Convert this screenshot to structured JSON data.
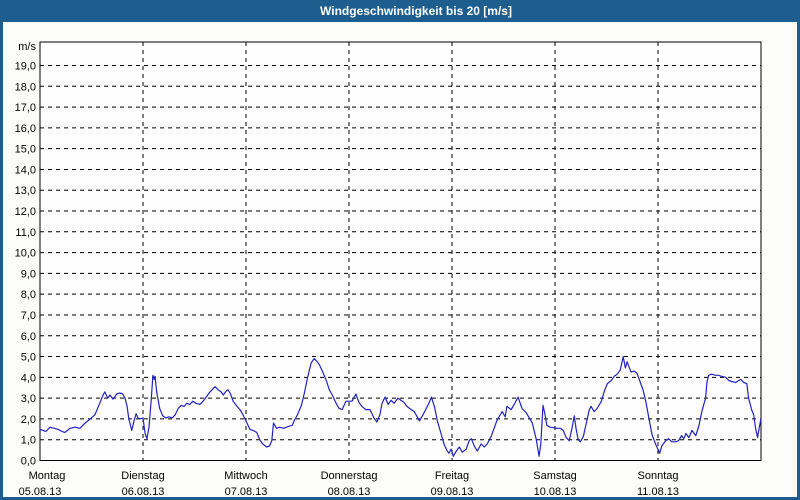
{
  "title": "Windgeschwindigkeit bis 20 [m/s]",
  "colors": {
    "frame_blue": "#1e5e8e",
    "title_text": "#ffffff",
    "chart_background": "#fdfefb",
    "plot_background": "#fefefe",
    "grid": "#000000",
    "axis_text": "#000000",
    "series_line": "#2222be"
  },
  "chart_data": {
    "type": "line",
    "title": "Windgeschwindigkeit bis 20 [m/s]",
    "ylabel": "m/s",
    "unit_label": "m/s",
    "ylim": [
      0,
      20.1
    ],
    "ytick_step": 1.0,
    "grid": "dashed",
    "legend": "none",
    "yticks": [
      "0,0",
      "1,0",
      "2,0",
      "3,0",
      "4,0",
      "5,0",
      "6,0",
      "7,0",
      "8,0",
      "9,0",
      "10,0",
      "11,0",
      "12,0",
      "13,0",
      "14,0",
      "15,0",
      "16,0",
      "17,0",
      "18,0",
      "19,0"
    ],
    "x_days": [
      {
        "name": "Montag",
        "date": "05.08.13"
      },
      {
        "name": "Dienstag",
        "date": "06.08.13"
      },
      {
        "name": "Mittwoch",
        "date": "07.08.13"
      },
      {
        "name": "Donnerstag",
        "date": "08.08.13"
      },
      {
        "name": "Freitag",
        "date": "09.08.13"
      },
      {
        "name": "Samstag",
        "date": "10.08.13"
      },
      {
        "name": "Sonntag",
        "date": "11.08.13"
      }
    ],
    "x_unit": "hours_since_start",
    "x_range": [
      0,
      168
    ],
    "series": [
      {
        "name": "Windgeschwindigkeit",
        "unit": "m/s",
        "color": "#2222be",
        "points": [
          [
            0.0,
            1.5
          ],
          [
            0.7,
            1.45
          ],
          [
            1.4,
            1.4
          ],
          [
            2.3,
            1.6
          ],
          [
            3.3,
            1.55
          ],
          [
            4.2,
            1.5
          ],
          [
            5.1,
            1.4
          ],
          [
            5.8,
            1.35
          ],
          [
            7.0,
            1.55
          ],
          [
            8.2,
            1.6
          ],
          [
            9.3,
            1.55
          ],
          [
            10.5,
            1.8
          ],
          [
            11.7,
            2.0
          ],
          [
            12.8,
            2.2
          ],
          [
            14.0,
            2.8
          ],
          [
            14.7,
            3.15
          ],
          [
            15.1,
            3.3
          ],
          [
            15.8,
            3.0
          ],
          [
            16.3,
            3.15
          ],
          [
            17.0,
            2.95
          ],
          [
            17.9,
            3.2
          ],
          [
            18.6,
            3.25
          ],
          [
            19.3,
            3.2
          ],
          [
            19.8,
            3.0
          ],
          [
            20.3,
            2.6
          ],
          [
            20.7,
            2.0
          ],
          [
            21.4,
            1.45
          ],
          [
            21.9,
            1.9
          ],
          [
            22.4,
            2.25
          ],
          [
            22.8,
            2.05
          ],
          [
            23.3,
            2.0
          ],
          [
            24.0,
            2.05
          ],
          [
            24.5,
            1.3
          ],
          [
            24.9,
            1.05
          ],
          [
            25.4,
            1.6
          ],
          [
            25.9,
            2.9
          ],
          [
            26.3,
            4.1
          ],
          [
            26.6,
            3.9
          ],
          [
            26.8,
            4.05
          ],
          [
            27.2,
            3.3
          ],
          [
            27.9,
            2.5
          ],
          [
            28.6,
            2.15
          ],
          [
            29.3,
            2.05
          ],
          [
            30.0,
            2.1
          ],
          [
            30.8,
            2.05
          ],
          [
            31.5,
            2.2
          ],
          [
            32.2,
            2.5
          ],
          [
            32.9,
            2.65
          ],
          [
            33.6,
            2.6
          ],
          [
            34.2,
            2.75
          ],
          [
            34.9,
            2.7
          ],
          [
            35.6,
            2.85
          ],
          [
            36.3,
            2.75
          ],
          [
            37.3,
            2.7
          ],
          [
            38.2,
            2.9
          ],
          [
            38.9,
            3.1
          ],
          [
            39.6,
            3.3
          ],
          [
            40.3,
            3.45
          ],
          [
            40.8,
            3.55
          ],
          [
            41.5,
            3.4
          ],
          [
            42.2,
            3.3
          ],
          [
            42.7,
            3.15
          ],
          [
            43.4,
            3.35
          ],
          [
            43.8,
            3.4
          ],
          [
            44.3,
            3.25
          ],
          [
            45.0,
            2.85
          ],
          [
            45.9,
            2.6
          ],
          [
            46.6,
            2.45
          ],
          [
            47.3,
            2.2
          ],
          [
            48.0,
            1.9
          ],
          [
            48.9,
            1.5
          ],
          [
            49.6,
            1.45
          ],
          [
            50.5,
            1.35
          ],
          [
            51.2,
            1.0
          ],
          [
            51.9,
            0.8
          ],
          [
            52.8,
            0.65
          ],
          [
            53.5,
            0.7
          ],
          [
            54.0,
            0.95
          ],
          [
            54.4,
            1.8
          ],
          [
            55.1,
            1.55
          ],
          [
            55.8,
            1.6
          ],
          [
            56.7,
            1.55
          ],
          [
            57.4,
            1.6
          ],
          [
            58.1,
            1.65
          ],
          [
            58.8,
            1.7
          ],
          [
            59.3,
            1.95
          ],
          [
            60.0,
            2.2
          ],
          [
            60.9,
            2.65
          ],
          [
            61.6,
            3.25
          ],
          [
            62.3,
            3.95
          ],
          [
            63.2,
            4.7
          ],
          [
            63.9,
            4.9
          ],
          [
            64.6,
            4.75
          ],
          [
            65.1,
            4.6
          ],
          [
            65.8,
            4.3
          ],
          [
            66.7,
            3.85
          ],
          [
            67.4,
            3.4
          ],
          [
            68.1,
            3.15
          ],
          [
            69.0,
            2.75
          ],
          [
            69.7,
            2.5
          ],
          [
            70.4,
            2.45
          ],
          [
            71.3,
            2.85
          ],
          [
            72.0,
            2.85
          ],
          [
            72.7,
            2.85
          ],
          [
            73.6,
            3.2
          ],
          [
            74.3,
            2.8
          ],
          [
            75.0,
            2.6
          ],
          [
            75.9,
            2.45
          ],
          [
            76.9,
            2.45
          ],
          [
            77.8,
            2.05
          ],
          [
            78.5,
            1.85
          ],
          [
            79.2,
            2.2
          ],
          [
            79.7,
            2.75
          ],
          [
            80.4,
            3.05
          ],
          [
            81.1,
            2.7
          ],
          [
            81.8,
            2.9
          ],
          [
            82.5,
            2.75
          ],
          [
            83.4,
            3.0
          ],
          [
            84.1,
            2.9
          ],
          [
            84.8,
            2.8
          ],
          [
            85.5,
            2.6
          ],
          [
            86.5,
            2.45
          ],
          [
            87.2,
            2.35
          ],
          [
            87.9,
            2.1
          ],
          [
            88.4,
            1.9
          ],
          [
            89.1,
            2.15
          ],
          [
            90.0,
            2.5
          ],
          [
            90.7,
            2.8
          ],
          [
            91.2,
            3.05
          ],
          [
            91.9,
            2.6
          ],
          [
            92.6,
            1.9
          ],
          [
            93.5,
            1.25
          ],
          [
            94.2,
            0.75
          ],
          [
            94.9,
            0.45
          ],
          [
            95.3,
            0.35
          ],
          [
            95.8,
            0.55
          ],
          [
            96.3,
            0.2
          ],
          [
            97.0,
            0.45
          ],
          [
            97.7,
            0.65
          ],
          [
            98.4,
            0.4
          ],
          [
            99.3,
            0.55
          ],
          [
            100.0,
            0.95
          ],
          [
            100.5,
            1.05
          ],
          [
            101.2,
            0.7
          ],
          [
            101.9,
            0.45
          ],
          [
            102.8,
            0.8
          ],
          [
            103.5,
            0.65
          ],
          [
            104.2,
            0.8
          ],
          [
            105.1,
            1.15
          ],
          [
            105.8,
            1.55
          ],
          [
            106.5,
            1.95
          ],
          [
            107.7,
            2.35
          ],
          [
            108.4,
            2.1
          ],
          [
            108.8,
            2.6
          ],
          [
            109.8,
            2.45
          ],
          [
            110.5,
            2.7
          ],
          [
            111.4,
            3.05
          ],
          [
            112.3,
            2.5
          ],
          [
            113.3,
            2.3
          ],
          [
            114.0,
            2.05
          ],
          [
            114.7,
            1.8
          ],
          [
            115.6,
            1.05
          ],
          [
            116.3,
            0.2
          ],
          [
            116.7,
            0.8
          ],
          [
            117.2,
            2.65
          ],
          [
            117.7,
            2.2
          ],
          [
            118.1,
            1.7
          ],
          [
            118.8,
            1.6
          ],
          [
            119.8,
            1.58
          ],
          [
            120.2,
            1.55
          ],
          [
            121.2,
            1.55
          ],
          [
            121.9,
            1.45
          ],
          [
            122.6,
            1.1
          ],
          [
            123.3,
            0.95
          ],
          [
            124.0,
            1.6
          ],
          [
            124.5,
            2.15
          ],
          [
            124.9,
            1.55
          ],
          [
            125.4,
            1.0
          ],
          [
            125.9,
            0.9
          ],
          [
            126.6,
            1.15
          ],
          [
            127.3,
            1.8
          ],
          [
            128.0,
            2.45
          ],
          [
            128.4,
            2.6
          ],
          [
            129.1,
            2.35
          ],
          [
            129.8,
            2.5
          ],
          [
            130.8,
            2.85
          ],
          [
            131.5,
            3.35
          ],
          [
            132.2,
            3.7
          ],
          [
            133.1,
            3.85
          ],
          [
            133.8,
            4.05
          ],
          [
            134.5,
            4.15
          ],
          [
            135.2,
            4.35
          ],
          [
            135.9,
            5.0
          ],
          [
            136.4,
            4.45
          ],
          [
            136.8,
            4.75
          ],
          [
            137.7,
            4.25
          ],
          [
            138.4,
            4.3
          ],
          [
            139.1,
            4.2
          ],
          [
            139.8,
            3.8
          ],
          [
            140.5,
            3.4
          ],
          [
            141.2,
            2.8
          ],
          [
            141.9,
            2.0
          ],
          [
            142.6,
            1.25
          ],
          [
            143.5,
            0.75
          ],
          [
            144.2,
            0.45
          ],
          [
            144.4,
            0.35
          ],
          [
            144.9,
            0.7
          ],
          [
            145.8,
            0.95
          ],
          [
            146.5,
            1.05
          ],
          [
            147.2,
            0.9
          ],
          [
            148.1,
            0.9
          ],
          [
            148.8,
            0.95
          ],
          [
            149.5,
            1.2
          ],
          [
            150.0,
            1.05
          ],
          [
            150.5,
            1.3
          ],
          [
            151.2,
            1.1
          ],
          [
            151.9,
            1.45
          ],
          [
            152.8,
            1.2
          ],
          [
            153.5,
            1.65
          ],
          [
            154.2,
            2.35
          ],
          [
            155.1,
            3.0
          ],
          [
            155.4,
            3.75
          ],
          [
            155.8,
            4.1
          ],
          [
            156.5,
            4.15
          ],
          [
            157.5,
            4.1
          ],
          [
            158.1,
            4.1
          ],
          [
            158.8,
            4.05
          ],
          [
            159.8,
            4.0
          ],
          [
            160.5,
            3.85
          ],
          [
            161.2,
            3.8
          ],
          [
            162.1,
            3.75
          ],
          [
            162.8,
            3.85
          ],
          [
            163.3,
            3.9
          ],
          [
            164.0,
            3.75
          ],
          [
            164.7,
            3.7
          ],
          [
            165.1,
            3.0
          ],
          [
            165.8,
            2.45
          ],
          [
            166.3,
            2.2
          ],
          [
            166.7,
            1.6
          ],
          [
            167.2,
            1.1
          ],
          [
            167.6,
            1.6
          ],
          [
            168.0,
            2.0
          ]
        ]
      }
    ]
  }
}
